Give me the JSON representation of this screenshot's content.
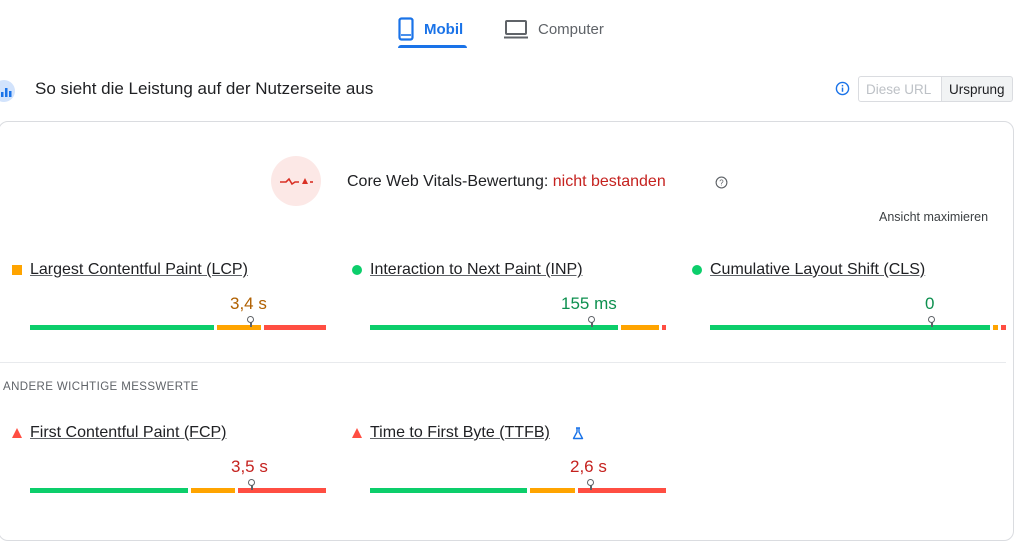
{
  "tabs": {
    "mobile_label": "Mobil",
    "desktop_label": "Computer",
    "active": "mobile"
  },
  "header": {
    "title": "So sieht die Leistung auf der Nutzerseite aus",
    "toggle_url_label": "Diese URL",
    "toggle_origin_label": "Ursprung",
    "toggle_selected": "Ursprung"
  },
  "assessment": {
    "label": "Core Web Vitals-Bewertung: ",
    "status": "nicht bestanden",
    "expand_label": "Ansicht maximieren"
  },
  "core_metrics": [
    {
      "name": "Largest Contentful Paint (LCP)",
      "value": "3,4 s",
      "rating": "needs-improvement",
      "marker": "orange-square"
    },
    {
      "name": "Interaction to Next Paint (INP)",
      "value": "155 ms",
      "rating": "good",
      "marker": "green-circle"
    },
    {
      "name": "Cumulative Layout Shift (CLS)",
      "value": "0",
      "rating": "good",
      "marker": "green-circle"
    }
  ],
  "other_section_label": "ANDERE WICHTIGE MESSWERTE",
  "other_metrics": [
    {
      "name": "First Contentful Paint (FCP)",
      "value": "3,5 s",
      "rating": "poor",
      "marker": "red-triangle"
    },
    {
      "name": "Time to First Byte (TTFB)",
      "value": "2,6 s",
      "rating": "poor",
      "marker": "red-triangle",
      "experimental_icon": "flask-icon"
    }
  ],
  "colors": {
    "accent": "#1a73e8",
    "good": "#0cce6b",
    "average": "#ffa400",
    "poor": "#ff4e42",
    "fail_text": "#c5221f"
  }
}
